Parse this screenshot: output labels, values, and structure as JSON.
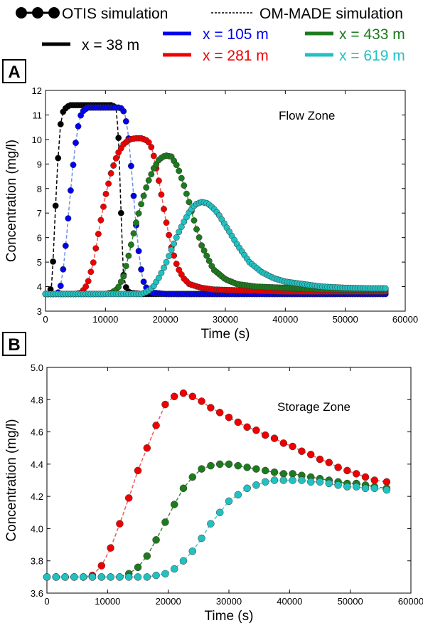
{
  "legend": {
    "otis_label": "OTIS simulation",
    "ommade_label": "OM-MADE simulation",
    "entries": [
      {
        "label": "x = 38 m",
        "color": "#000000"
      },
      {
        "label": "x = 105 m",
        "color": "#0000ee"
      },
      {
        "label": "x = 433 m",
        "color": "#1e7a1e"
      },
      {
        "label": "x = 281 m",
        "color": "#ee0000"
      },
      {
        "label": "x = 619 m",
        "color": "#22c1c1"
      }
    ]
  },
  "panel_labels": [
    "A",
    "B"
  ],
  "colors": {
    "x38": "#000000",
    "x105": "#0000ee",
    "x281": "#ee0000",
    "x433": "#1e7a1e",
    "x619": "#22c1c1",
    "x105_dash": "#6f8fe0",
    "x281_dash": "#f05a5a",
    "x433_dash": "#3a8a3a",
    "x619_dash": "#55c8c8"
  },
  "chart_data": [
    {
      "type": "scatter",
      "panel": "A",
      "annotation": "Flow Zone",
      "xlabel": "Time (s)",
      "ylabel": "Concentration (mg/l)",
      "xlim": [
        0,
        60000
      ],
      "ylim": [
        3,
        12
      ],
      "xticks": [
        "0",
        "10000",
        "20000",
        "30000",
        "40000",
        "50000",
        "60000"
      ],
      "yticks": [
        "3",
        "4",
        "5",
        "6",
        "7",
        "8",
        "9",
        "10",
        "11",
        "12"
      ],
      "series": [
        {
          "name": "x = 38 m",
          "x": [
            0,
            600,
            1100,
            1500,
            2000,
            2500,
            3000,
            4000,
            6000,
            8000,
            10000,
            11000,
            11800,
            12200,
            12600,
            13000,
            13500,
            14000,
            16000,
            20000,
            30000,
            57000
          ],
          "y": [
            3.7,
            3.7,
            4.1,
            6.4,
            8.9,
            10.6,
            11.2,
            11.4,
            11.4,
            11.4,
            11.4,
            11.4,
            11.3,
            10.0,
            7.0,
            4.5,
            3.9,
            3.75,
            3.7,
            3.7,
            3.7,
            3.7
          ]
        },
        {
          "name": "x = 105 m",
          "x": [
            0,
            2000,
            2500,
            3000,
            3500,
            4000,
            4500,
            5000,
            5500,
            6000,
            7000,
            9000,
            11000,
            12500,
            13200,
            13800,
            14400,
            15000,
            15600,
            16200,
            17000,
            18000,
            20000,
            30000,
            57000
          ],
          "y": [
            3.7,
            3.7,
            4.0,
            4.8,
            6.0,
            7.4,
            8.7,
            9.8,
            10.6,
            11.1,
            11.3,
            11.3,
            11.3,
            11.3,
            11.1,
            10.2,
            8.6,
            6.8,
            5.3,
            4.3,
            3.85,
            3.75,
            3.7,
            3.7,
            3.7
          ]
        },
        {
          "name": "x = 281 m",
          "x": [
            0,
            5000,
            6000,
            7000,
            8000,
            9000,
            10000,
            11000,
            12000,
            13000,
            14000,
            15000,
            16000,
            17000,
            17500,
            18000,
            19000,
            20000,
            21000,
            22000,
            23000,
            24000,
            26000,
            28000,
            32000,
            40000,
            57000
          ],
          "y": [
            3.7,
            3.7,
            3.75,
            4.1,
            5.0,
            6.4,
            7.7,
            8.7,
            9.4,
            9.8,
            10.0,
            10.05,
            10.05,
            9.95,
            9.8,
            9.4,
            8.2,
            6.8,
            5.6,
            4.8,
            4.35,
            4.1,
            3.95,
            3.88,
            3.85,
            3.8,
            3.8
          ]
        },
        {
          "name": "x = 433 m",
          "x": [
            0,
            10000,
            11000,
            12000,
            13000,
            14000,
            15000,
            16000,
            17000,
            18000,
            19000,
            20000,
            21000,
            22000,
            23000,
            24000,
            25000,
            26000,
            28000,
            30000,
            32000,
            35000,
            40000,
            45000,
            50000,
            57000
          ],
          "y": [
            3.7,
            3.7,
            3.75,
            3.9,
            4.4,
            5.4,
            6.5,
            7.4,
            8.2,
            8.8,
            9.2,
            9.35,
            9.3,
            8.9,
            8.2,
            7.4,
            6.5,
            5.7,
            4.7,
            4.3,
            4.1,
            4.0,
            3.95,
            3.9,
            3.88,
            3.88
          ]
        },
        {
          "name": "x = 619 m",
          "x": [
            0,
            16000,
            17000,
            18000,
            19000,
            20000,
            21000,
            22000,
            23000,
            24000,
            25000,
            26000,
            27000,
            28000,
            29000,
            30000,
            32000,
            34000,
            36000,
            38000,
            40000,
            43000,
            46000,
            50000,
            54000,
            57000
          ],
          "y": [
            3.7,
            3.7,
            3.8,
            4.0,
            4.4,
            4.9,
            5.5,
            6.1,
            6.6,
            7.05,
            7.35,
            7.45,
            7.4,
            7.2,
            6.9,
            6.5,
            5.7,
            5.0,
            4.6,
            4.35,
            4.2,
            4.1,
            4.0,
            3.95,
            3.93,
            3.93
          ]
        }
      ]
    },
    {
      "type": "scatter",
      "panel": "B",
      "annotation": "Storage Zone",
      "xlabel": "Time (s)",
      "ylabel": "Concentration (mg/l)",
      "xlim": [
        0,
        60000
      ],
      "ylim": [
        3.6,
        5.0
      ],
      "xticks": [
        "0",
        "10000",
        "20000",
        "30000",
        "40000",
        "50000",
        "60000"
      ],
      "yticks": [
        "3.6",
        "3.8",
        "4.0",
        "4.2",
        "4.4",
        "4.6",
        "4.8",
        "5.0"
      ],
      "series": [
        {
          "name": "x = 281 m",
          "x": [
            0,
            1500,
            3000,
            4500,
            6000,
            7500,
            9000,
            10500,
            12000,
            13500,
            15000,
            16500,
            18000,
            19500,
            21000,
            22500,
            24000,
            25500,
            27000,
            28500,
            30000,
            31500,
            33000,
            34500,
            36000,
            37500,
            39000,
            40500,
            42000,
            43500,
            45000,
            46500,
            48000,
            49500,
            51000,
            52500,
            54000,
            56000
          ],
          "y": [
            3.7,
            3.7,
            3.7,
            3.7,
            3.7,
            3.71,
            3.77,
            3.88,
            4.03,
            4.19,
            4.36,
            4.5,
            4.64,
            4.77,
            4.82,
            4.84,
            4.82,
            4.79,
            4.75,
            4.72,
            4.69,
            4.66,
            4.63,
            4.61,
            4.58,
            4.56,
            4.53,
            4.51,
            4.48,
            4.46,
            4.43,
            4.41,
            4.38,
            4.36,
            4.34,
            4.32,
            4.3,
            4.29
          ]
        },
        {
          "name": "x = 433 m",
          "x": [
            0,
            1500,
            3000,
            4500,
            6000,
            7500,
            9000,
            10500,
            12000,
            13500,
            15000,
            16500,
            18000,
            19500,
            21000,
            22500,
            24000,
            25500,
            27000,
            28500,
            30000,
            31500,
            33000,
            34500,
            36000,
            37500,
            39000,
            40500,
            42000,
            43500,
            45000,
            46500,
            48000,
            49500,
            51000,
            52500,
            54000,
            56000
          ],
          "y": [
            3.7,
            3.7,
            3.7,
            3.7,
            3.7,
            3.7,
            3.7,
            3.7,
            3.7,
            3.72,
            3.76,
            3.83,
            3.93,
            4.04,
            4.15,
            4.25,
            4.32,
            4.37,
            4.39,
            4.4,
            4.4,
            4.39,
            4.38,
            4.37,
            4.36,
            4.35,
            4.34,
            4.34,
            4.33,
            4.32,
            4.31,
            4.3,
            4.29,
            4.28,
            4.28,
            4.27,
            4.26,
            4.25
          ]
        },
        {
          "name": "x = 619 m",
          "x": [
            0,
            1500,
            3000,
            4500,
            6000,
            7500,
            9000,
            10500,
            12000,
            13500,
            15000,
            16500,
            18000,
            19500,
            21000,
            22500,
            24000,
            25500,
            27000,
            28500,
            30000,
            31500,
            33000,
            34500,
            36000,
            37500,
            39000,
            40500,
            42000,
            43500,
            45000,
            46500,
            48000,
            49500,
            51000,
            52500,
            54000,
            56000
          ],
          "y": [
            3.7,
            3.7,
            3.7,
            3.7,
            3.7,
            3.7,
            3.7,
            3.7,
            3.7,
            3.7,
            3.7,
            3.7,
            3.71,
            3.72,
            3.75,
            3.8,
            3.86,
            3.94,
            4.03,
            4.1,
            4.17,
            4.21,
            4.25,
            4.27,
            4.29,
            4.3,
            4.3,
            4.3,
            4.3,
            4.29,
            4.29,
            4.28,
            4.27,
            4.26,
            4.26,
            4.25,
            4.25,
            4.24
          ]
        }
      ]
    }
  ]
}
